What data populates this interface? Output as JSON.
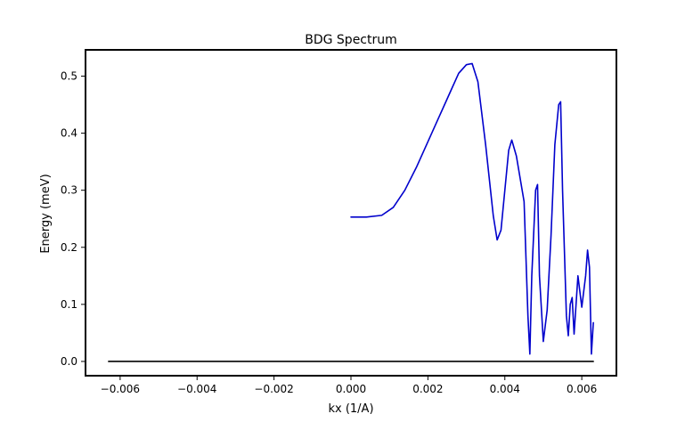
{
  "chart_data": {
    "type": "line",
    "title": "BDG Spectrum",
    "xlabel": "kx (1/A)",
    "ylabel": "Energy (meV)",
    "xlim": [
      -0.0069,
      0.0069
    ],
    "ylim": [
      -0.025,
      0.546
    ],
    "x_ticks": [
      -0.006,
      -0.004,
      -0.002,
      0.0,
      0.002,
      0.004,
      0.006
    ],
    "x_tick_labels": [
      "−0.006",
      "−0.004",
      "−0.002",
      "0.000",
      "0.002",
      "0.004",
      "0.006"
    ],
    "y_ticks": [
      0.0,
      0.1,
      0.2,
      0.3,
      0.4,
      0.5
    ],
    "y_tick_labels": [
      "0.0",
      "0.1",
      "0.2",
      "0.3",
      "0.4",
      "0.5"
    ],
    "grid": false,
    "legend": "none",
    "series": [
      {
        "color": "#0000cc",
        "x": [
          0.0,
          0.0004,
          0.0008,
          0.0011,
          0.0014,
          0.0017,
          0.002,
          0.0023,
          0.0026,
          0.0028,
          0.003,
          0.00315,
          0.0033,
          0.0035,
          0.0037,
          0.0038,
          0.0039,
          0.004,
          0.0041,
          0.00418,
          0.0043,
          0.0044,
          0.0045,
          0.0046,
          0.00465,
          0.0047,
          0.0048,
          0.00485,
          0.0049,
          0.005,
          0.0051,
          0.0052,
          0.0053,
          0.0054,
          0.00545,
          0.0055,
          0.0056,
          0.00565,
          0.0057,
          0.00575,
          0.0058,
          0.0059,
          0.006,
          0.0061,
          0.00615,
          0.0062,
          0.00625,
          0.0063
        ],
        "y": [
          0.253,
          0.253,
          0.256,
          0.27,
          0.3,
          0.34,
          0.385,
          0.43,
          0.475,
          0.505,
          0.52,
          0.522,
          0.49,
          0.38,
          0.255,
          0.213,
          0.23,
          0.3,
          0.37,
          0.388,
          0.36,
          0.32,
          0.28,
          0.08,
          0.013,
          0.15,
          0.3,
          0.31,
          0.15,
          0.035,
          0.09,
          0.22,
          0.38,
          0.45,
          0.455,
          0.3,
          0.08,
          0.045,
          0.1,
          0.112,
          0.048,
          0.15,
          0.095,
          0.15,
          0.195,
          0.165,
          0.013,
          0.068
        ]
      },
      {
        "color": "#000000",
        "x": [
          -0.0063,
          0.0063
        ],
        "y": [
          0.0,
          0.0
        ]
      }
    ]
  }
}
